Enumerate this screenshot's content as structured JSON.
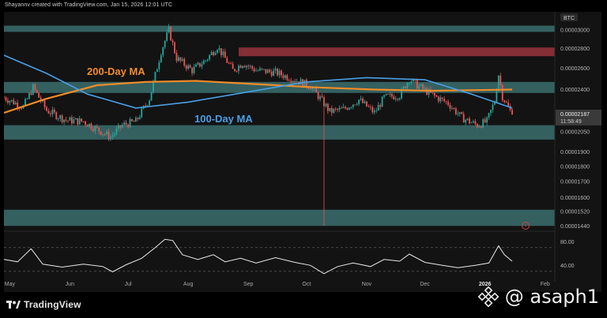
{
  "attribution": "Shayannv created with TradingView.com, Jan 15, 2026 12:01 UTC",
  "symbol_label": "BTC",
  "price": {
    "current": "0.00002187",
    "countdown": "11:58:49"
  },
  "annotations": {
    "ma200": "200-Day MA",
    "ma100": "100-Day MA"
  },
  "branding": {
    "logo_text": "TradingView",
    "watermark": "@ asaph1"
  },
  "colors": {
    "background": "#131313",
    "up_candle": "#26a69a",
    "down_candle": "#ef5350",
    "ma200": "#f28c28",
    "ma100": "#4a9fe6",
    "zone_support": "#3b6e6e",
    "zone_resistance": "#8a2f37",
    "rsi": "#e8e8e8"
  },
  "chart_data": [
    {
      "type": "candlestick",
      "title": "",
      "symbol": "BTC",
      "scale": "log",
      "ylim": [
        1.42e-05,
        3.1e-05
      ],
      "yticks": [
        "0.00003000",
        "0.00002800",
        "0.00002600",
        "0.00002400",
        "0.00002050",
        "0.00001900",
        "0.00001800",
        "0.00001700",
        "0.00001600",
        "0.00001520",
        "0.00001440"
      ],
      "ytick_values": [
        3e-05,
        2.8e-05,
        2.6e-05,
        2.4e-05,
        2.05e-05,
        1.9e-05,
        1.8e-05,
        1.7e-05,
        1.6e-05,
        1.52e-05,
        1.44e-05
      ],
      "xticks": [
        "May",
        "Jun",
        "Jul",
        "Aug",
        "Sep",
        "Oct",
        "Nov",
        "Dec",
        "2026",
        "Feb"
      ],
      "x_range": [
        "2025-04-28",
        "2026-02-06"
      ],
      "last_date": "2026-01-15",
      "last_price": 2.187e-05,
      "zones": [
        {
          "kind": "support",
          "low": 2.98e-05,
          "high": 3.05e-05
        },
        {
          "kind": "resistance",
          "low": 2.72e-05,
          "high": 2.81e-05,
          "from": "2025-08-27",
          "to": "2026-02-06"
        },
        {
          "kind": "support",
          "low": 2.37e-05,
          "high": 2.47e-05
        },
        {
          "kind": "support",
          "low": 1.99e-05,
          "high": 2.1e-05
        },
        {
          "kind": "support",
          "low": 1.44e-05,
          "high": 1.53e-05
        }
      ],
      "price_path": [
        {
          "date": "2025-04-28",
          "value": 2.33e-05
        },
        {
          "date": "2025-05-08",
          "value": 2.25e-05
        },
        {
          "date": "2025-05-13",
          "value": 2.42e-05
        },
        {
          "date": "2025-05-20",
          "value": 2.22e-05
        },
        {
          "date": "2025-05-30",
          "value": 2.14e-05
        },
        {
          "date": "2025-06-08",
          "value": 2.13e-05
        },
        {
          "date": "2025-06-16",
          "value": 2.06e-05
        },
        {
          "date": "2025-06-22",
          "value": 2.01e-05
        },
        {
          "date": "2025-06-28",
          "value": 2.1e-05
        },
        {
          "date": "2025-07-05",
          "value": 2.13e-05
        },
        {
          "date": "2025-07-12",
          "value": 2.32e-05
        },
        {
          "date": "2025-07-18",
          "value": 2.77e-05
        },
        {
          "date": "2025-07-22",
          "value": 3e-05
        },
        {
          "date": "2025-07-26",
          "value": 2.7e-05
        },
        {
          "date": "2025-08-03",
          "value": 2.58e-05
        },
        {
          "date": "2025-08-10",
          "value": 2.68e-05
        },
        {
          "date": "2025-08-16",
          "value": 2.82e-05
        },
        {
          "date": "2025-08-24",
          "value": 2.58e-05
        },
        {
          "date": "2025-08-29",
          "value": 2.65e-05
        },
        {
          "date": "2025-09-05",
          "value": 2.58e-05
        },
        {
          "date": "2025-09-15",
          "value": 2.56e-05
        },
        {
          "date": "2025-09-25",
          "value": 2.49e-05
        },
        {
          "date": "2025-10-03",
          "value": 2.43e-05
        },
        {
          "date": "2025-10-09",
          "value": 2.3e-05
        },
        {
          "date": "2025-10-13",
          "value": 2.21e-05
        },
        {
          "date": "2025-10-20",
          "value": 2.23e-05
        },
        {
          "date": "2025-10-28",
          "value": 2.31e-05
        },
        {
          "date": "2025-11-05",
          "value": 2.2e-05
        },
        {
          "date": "2025-11-10",
          "value": 2.33e-05
        },
        {
          "date": "2025-11-18",
          "value": 2.35e-05
        },
        {
          "date": "2025-11-23",
          "value": 2.5e-05
        },
        {
          "date": "2025-11-27",
          "value": 2.44e-05
        },
        {
          "date": "2025-12-05",
          "value": 2.35e-05
        },
        {
          "date": "2025-12-13",
          "value": 2.28e-05
        },
        {
          "date": "2025-12-20",
          "value": 2.16e-05
        },
        {
          "date": "2025-12-28",
          "value": 2.1e-05
        },
        {
          "date": "2026-01-02",
          "value": 2.13e-05
        },
        {
          "date": "2026-01-06",
          "value": 2.3e-05
        },
        {
          "date": "2026-01-08",
          "value": 2.54e-05
        },
        {
          "date": "2026-01-10",
          "value": 2.34e-05
        },
        {
          "date": "2026-01-15",
          "value": 2.187e-05
        }
      ],
      "wick_low": {
        "date": "2025-10-10",
        "value": 1.44e-05
      },
      "series": [
        {
          "name": "200-Day MA",
          "points": [
            {
              "date": "2025-04-28",
              "value": 2.2e-05
            },
            {
              "date": "2025-05-20",
              "value": 2.32e-05
            },
            {
              "date": "2025-06-15",
              "value": 2.44e-05
            },
            {
              "date": "2025-07-10",
              "value": 2.47e-05
            },
            {
              "date": "2025-08-05",
              "value": 2.48e-05
            },
            {
              "date": "2025-09-05",
              "value": 2.45e-05
            },
            {
              "date": "2025-10-05",
              "value": 2.42e-05
            },
            {
              "date": "2025-11-05",
              "value": 2.4e-05
            },
            {
              "date": "2025-12-05",
              "value": 2.39e-05
            },
            {
              "date": "2026-01-15",
              "value": 2.4e-05
            }
          ]
        },
        {
          "name": "100-Day MA",
          "points": [
            {
              "date": "2025-04-28",
              "value": 2.73e-05
            },
            {
              "date": "2025-05-20",
              "value": 2.55e-05
            },
            {
              "date": "2025-06-10",
              "value": 2.36e-05
            },
            {
              "date": "2025-07-05",
              "value": 2.24e-05
            },
            {
              "date": "2025-08-01",
              "value": 2.29e-05
            },
            {
              "date": "2025-09-01",
              "value": 2.38e-05
            },
            {
              "date": "2025-10-01",
              "value": 2.47e-05
            },
            {
              "date": "2025-11-01",
              "value": 2.51e-05
            },
            {
              "date": "2025-12-01",
              "value": 2.49e-05
            },
            {
              "date": "2025-12-25",
              "value": 2.36e-05
            },
            {
              "date": "2026-01-15",
              "value": 2.24e-05
            }
          ]
        }
      ]
    },
    {
      "type": "line",
      "title": "",
      "ylim": [
        15,
        95
      ],
      "yticks": [
        "80.00",
        "40.00"
      ],
      "ytick_values": [
        80,
        40
      ],
      "guide_levels": [
        70,
        30
      ],
      "series": [
        {
          "points": [
            {
              "date": "2025-04-28",
              "value": 50
            },
            {
              "date": "2025-05-05",
              "value": 46
            },
            {
              "date": "2025-05-12",
              "value": 68
            },
            {
              "date": "2025-05-18",
              "value": 42
            },
            {
              "date": "2025-05-28",
              "value": 37
            },
            {
              "date": "2025-06-08",
              "value": 42
            },
            {
              "date": "2025-06-18",
              "value": 38
            },
            {
              "date": "2025-06-23",
              "value": 29
            },
            {
              "date": "2025-06-30",
              "value": 41
            },
            {
              "date": "2025-07-08",
              "value": 52
            },
            {
              "date": "2025-07-15",
              "value": 70
            },
            {
              "date": "2025-07-20",
              "value": 84
            },
            {
              "date": "2025-07-24",
              "value": 82
            },
            {
              "date": "2025-07-29",
              "value": 58
            },
            {
              "date": "2025-08-06",
              "value": 50
            },
            {
              "date": "2025-08-14",
              "value": 58
            },
            {
              "date": "2025-08-20",
              "value": 46
            },
            {
              "date": "2025-08-28",
              "value": 52
            },
            {
              "date": "2025-09-05",
              "value": 44
            },
            {
              "date": "2025-09-15",
              "value": 53
            },
            {
              "date": "2025-09-25",
              "value": 45
            },
            {
              "date": "2025-10-03",
              "value": 40
            },
            {
              "date": "2025-10-10",
              "value": 26
            },
            {
              "date": "2025-10-17",
              "value": 38
            },
            {
              "date": "2025-10-25",
              "value": 44
            },
            {
              "date": "2025-11-03",
              "value": 38
            },
            {
              "date": "2025-11-10",
              "value": 50
            },
            {
              "date": "2025-11-18",
              "value": 47
            },
            {
              "date": "2025-11-23",
              "value": 59
            },
            {
              "date": "2025-12-01",
              "value": 45
            },
            {
              "date": "2025-12-10",
              "value": 40
            },
            {
              "date": "2025-12-18",
              "value": 36
            },
            {
              "date": "2025-12-27",
              "value": 40
            },
            {
              "date": "2026-01-03",
              "value": 44
            },
            {
              "date": "2026-01-08",
              "value": 73
            },
            {
              "date": "2026-01-11",
              "value": 58
            },
            {
              "date": "2026-01-15",
              "value": 47
            }
          ]
        }
      ]
    }
  ]
}
